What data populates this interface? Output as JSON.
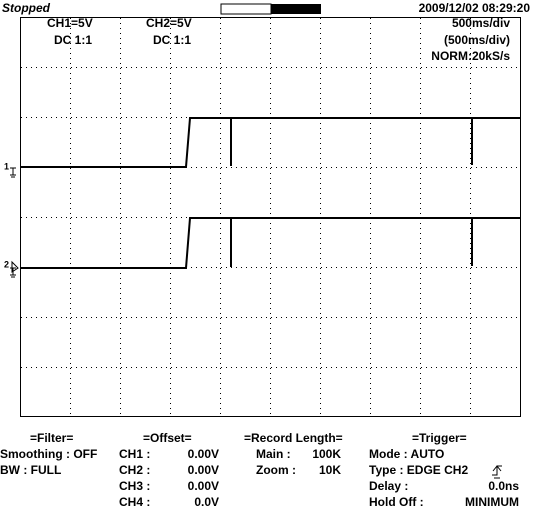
{
  "header": {
    "status": "Stopped",
    "datetime": "2009/12/02  08:29:20"
  },
  "display": {
    "ch1_scale": "CH1=5V",
    "ch1_coupling": "DC  1:1",
    "ch2_scale": "CH2=5V",
    "ch2_coupling": "DC  1:1",
    "timebase": "500ms/div",
    "zoom_timebase": "(500ms/div)",
    "sampling": "NORM:20kS/s",
    "ch1_marker": "1",
    "ch2_marker": "2"
  },
  "panels": {
    "filter": {
      "title": "=Filter=",
      "rows": [
        "Smoothing : OFF",
        "BW : FULL"
      ]
    },
    "offset": {
      "title": "=Offset=",
      "rows": [
        [
          "CH1 :",
          "0.00V"
        ],
        [
          "CH2 :",
          "0.00V"
        ],
        [
          "CH3 :",
          "0.00V"
        ],
        [
          "CH4 :",
          "0.0V"
        ]
      ]
    },
    "record": {
      "title": "=Record  Length=",
      "rows": [
        [
          "Main :",
          "100K"
        ],
        [
          "Zoom :",
          "10K"
        ]
      ]
    },
    "trigger": {
      "title": "=Trigger=",
      "rows": [
        [
          "Mode : AUTO",
          ""
        ],
        [
          "Type : EDGE  CH2",
          ""
        ],
        [
          "Delay :",
          "0.0ns"
        ],
        [
          "Hold  Off :",
          "MINIMUM"
        ]
      ]
    }
  }
}
